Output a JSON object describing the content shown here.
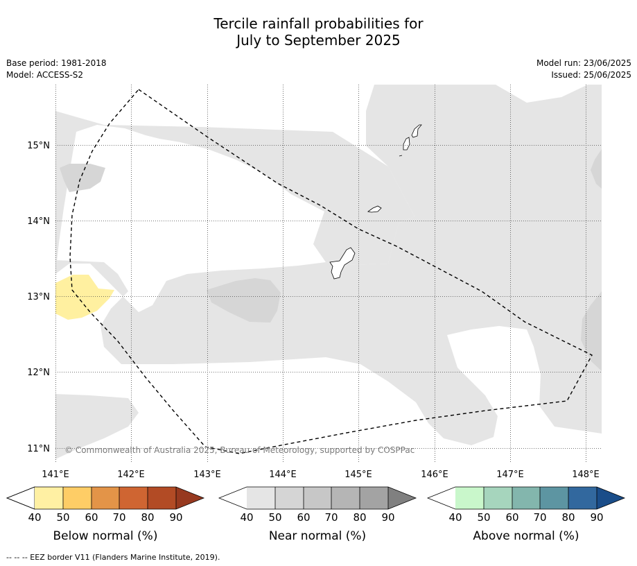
{
  "title": {
    "line1": "Tercile rainfall probabilities for",
    "line2": "July to September 2025"
  },
  "meta": {
    "base_period": "Base period: 1981-2018",
    "model": "Model: ACCESS-S2",
    "model_run": "Model run: 23/06/2025",
    "issued": "Issued: 25/06/2025"
  },
  "map": {
    "lon_ticks": [
      "141°E",
      "142°E",
      "143°E",
      "144°E",
      "145°E",
      "146°E",
      "147°E",
      "148°E"
    ],
    "lat_ticks": [
      "15°N",
      "14°N",
      "13°N",
      "12°N",
      "11°N"
    ],
    "copyright": "© Commonwealth of Australia 2025, Bureau of Meteorology, supported by COSPPac",
    "colors": {
      "near_40": "#e5e5e5",
      "near_50": "#d6d6d6",
      "below_40": "#fff0a0",
      "ocean": "#ffffff",
      "eez_line": "#000000"
    }
  },
  "legends": [
    {
      "title": "Below normal (%)",
      "ticks": [
        "40",
        "50",
        "60",
        "70",
        "80",
        "90"
      ],
      "colors": [
        "#fff0a3",
        "#fecd66",
        "#e39448",
        "#cf6532",
        "#b24b25",
        "#97391f"
      ]
    },
    {
      "title": "Near normal (%)",
      "ticks": [
        "40",
        "50",
        "60",
        "70",
        "80",
        "90"
      ],
      "colors": [
        "#e5e5e5",
        "#d5d5d5",
        "#c7c7c7",
        "#b5b5b5",
        "#a3a3a3",
        "#808080"
      ]
    },
    {
      "title": "Above normal (%)",
      "ticks": [
        "40",
        "50",
        "60",
        "70",
        "80",
        "90"
      ],
      "colors": [
        "#c9f7cb",
        "#a6d5bd",
        "#83b6ad",
        "#5d95a2",
        "#32689e",
        "#1a4d89"
      ]
    }
  ],
  "footnote": "--  --  -- EEZ border V11 (Flanders Marine Institute, 2019)."
}
